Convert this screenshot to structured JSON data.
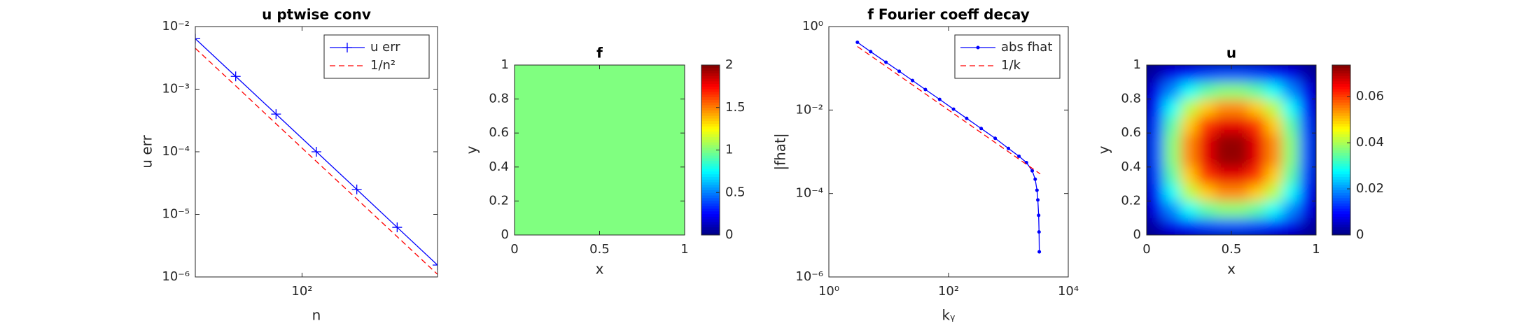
{
  "chart_data": [
    {
      "type": "line",
      "title": "u ptwise conv",
      "xlabel": "n",
      "ylabel": "u err",
      "xlog": true,
      "ylog": true,
      "xlim": [
        16,
        1024
      ],
      "ylim": [
        1e-06,
        0.01
      ],
      "xticks": [
        {
          "value": 100,
          "label": "10²"
        }
      ],
      "yticks": [
        {
          "value": 1e-06,
          "label": "10⁻⁶"
        },
        {
          "value": 1e-05,
          "label": "10⁻⁵"
        },
        {
          "value": 0.0001,
          "label": "10⁻⁴"
        },
        {
          "value": 0.001,
          "label": "10⁻³"
        },
        {
          "value": 0.01,
          "label": "10⁻²"
        }
      ],
      "legend": "northeast",
      "series": [
        {
          "name": "u err",
          "color": "#0000ff",
          "marker": "+",
          "linestyle": "solid",
          "x": [
            16,
            32,
            64,
            128,
            256,
            512,
            1024
          ],
          "values": [
            0.0064,
            0.0016,
            0.0004,
            0.0001,
            2.5e-05,
            6.2e-06,
            1.55e-06
          ]
        },
        {
          "name": "1/n²",
          "color": "#ff0000",
          "marker": "none",
          "linestyle": "dashed",
          "x": [
            16,
            32,
            64,
            128,
            256,
            512,
            1024
          ],
          "values": [
            0.0045,
            0.00113,
            0.00028,
            7e-05,
            1.76e-05,
            4.4e-06,
            1.1e-06
          ]
        }
      ]
    },
    {
      "type": "heatmap",
      "title": "f",
      "xlabel": "x",
      "ylabel": "y",
      "xlim": [
        0,
        1
      ],
      "ylim": [
        0,
        1
      ],
      "xticks": [
        0,
        0.5,
        1
      ],
      "yticks": [
        0,
        0.2,
        0.4,
        0.6,
        0.8,
        1
      ],
      "colormap": "jet",
      "clim": [
        0,
        2
      ],
      "cticks": [
        0,
        0.5,
        1,
        1.5,
        2
      ],
      "smooth": false,
      "z": [
        [
          1
        ]
      ]
    },
    {
      "type": "line",
      "title": "f Fourier coeff decay",
      "xlabel": "kᵧ",
      "ylabel": "|fhat|",
      "xlog": true,
      "ylog": true,
      "xlim": [
        1,
        10000
      ],
      "ylim": [
        1e-06,
        1
      ],
      "xticks": [
        {
          "value": 1,
          "label": "10⁰"
        },
        {
          "value": 100,
          "label": "10²"
        },
        {
          "value": 10000,
          "label": "10⁴"
        }
      ],
      "yticks": [
        {
          "value": 1e-06,
          "label": "10⁻⁶"
        },
        {
          "value": 0.0001,
          "label": "10⁻⁴"
        },
        {
          "value": 0.01,
          "label": "10⁻²"
        },
        {
          "value": 1,
          "label": "10⁰"
        }
      ],
      "legend": "northeast",
      "series": [
        {
          "name": "abs fhat",
          "color": "#0000ff",
          "marker": ".",
          "linestyle": "solid",
          "x": [
            3,
            5,
            9,
            15,
            25,
            41,
            71,
            121,
            201,
            351,
            601,
            1001,
            1501,
            2001,
            2501,
            2801,
            3001,
            3101,
            3201,
            3251,
            3281
          ],
          "values": [
            0.42,
            0.25,
            0.14,
            0.085,
            0.051,
            0.031,
            0.018,
            0.0105,
            0.0063,
            0.0036,
            0.0021,
            0.0012,
            0.00078,
            0.00055,
            0.00035,
            0.00022,
            0.00012,
            7e-05,
            3e-05,
            1.2e-05,
            4e-06
          ]
        },
        {
          "name": "1/k",
          "color": "#ff0000",
          "marker": "none",
          "linestyle": "dashed",
          "x": [
            3,
            3400
          ],
          "values": [
            0.3333,
            0.000294
          ]
        }
      ]
    },
    {
      "type": "heatmap",
      "title": "u",
      "xlabel": "x",
      "ylabel": "y",
      "xlim": [
        0,
        1
      ],
      "ylim": [
        0,
        1
      ],
      "xticks": [
        0,
        0.5,
        1
      ],
      "yticks": [
        0,
        0.2,
        0.4,
        0.6,
        0.8,
        1
      ],
      "colormap": "jet",
      "clim": [
        0,
        0.0737
      ],
      "cticks": [
        0,
        0.02,
        0.04,
        0.06
      ],
      "smooth": true,
      "z": [
        [
          0.0031,
          0.0078,
          0.0113,
          0.0138,
          0.015,
          0.015,
          0.0138,
          0.0113,
          0.0078,
          0.0031
        ],
        [
          0.0078,
          0.0192,
          0.0281,
          0.0341,
          0.0373,
          0.0373,
          0.0341,
          0.0281,
          0.0192,
          0.0078
        ],
        [
          0.0113,
          0.0281,
          0.0409,
          0.0497,
          0.0544,
          0.0544,
          0.0497,
          0.0409,
          0.0281,
          0.0113
        ],
        [
          0.0138,
          0.0341,
          0.0497,
          0.0605,
          0.0661,
          0.0661,
          0.0605,
          0.0497,
          0.0341,
          0.0138
        ],
        [
          0.015,
          0.0373,
          0.0544,
          0.0661,
          0.0722,
          0.0722,
          0.0661,
          0.0544,
          0.0373,
          0.015
        ],
        [
          0.015,
          0.0373,
          0.0544,
          0.0661,
          0.0722,
          0.0722,
          0.0661,
          0.0544,
          0.0373,
          0.015
        ],
        [
          0.0138,
          0.0341,
          0.0497,
          0.0605,
          0.0661,
          0.0661,
          0.0605,
          0.0497,
          0.0341,
          0.0138
        ],
        [
          0.0113,
          0.0281,
          0.0409,
          0.0497,
          0.0544,
          0.0544,
          0.0497,
          0.0409,
          0.0281,
          0.0113
        ],
        [
          0.0078,
          0.0192,
          0.0281,
          0.0341,
          0.0373,
          0.0373,
          0.0341,
          0.0281,
          0.0192,
          0.0078
        ],
        [
          0.0031,
          0.0078,
          0.0113,
          0.0138,
          0.015,
          0.015,
          0.0138,
          0.0113,
          0.0078,
          0.0031
        ]
      ]
    }
  ]
}
